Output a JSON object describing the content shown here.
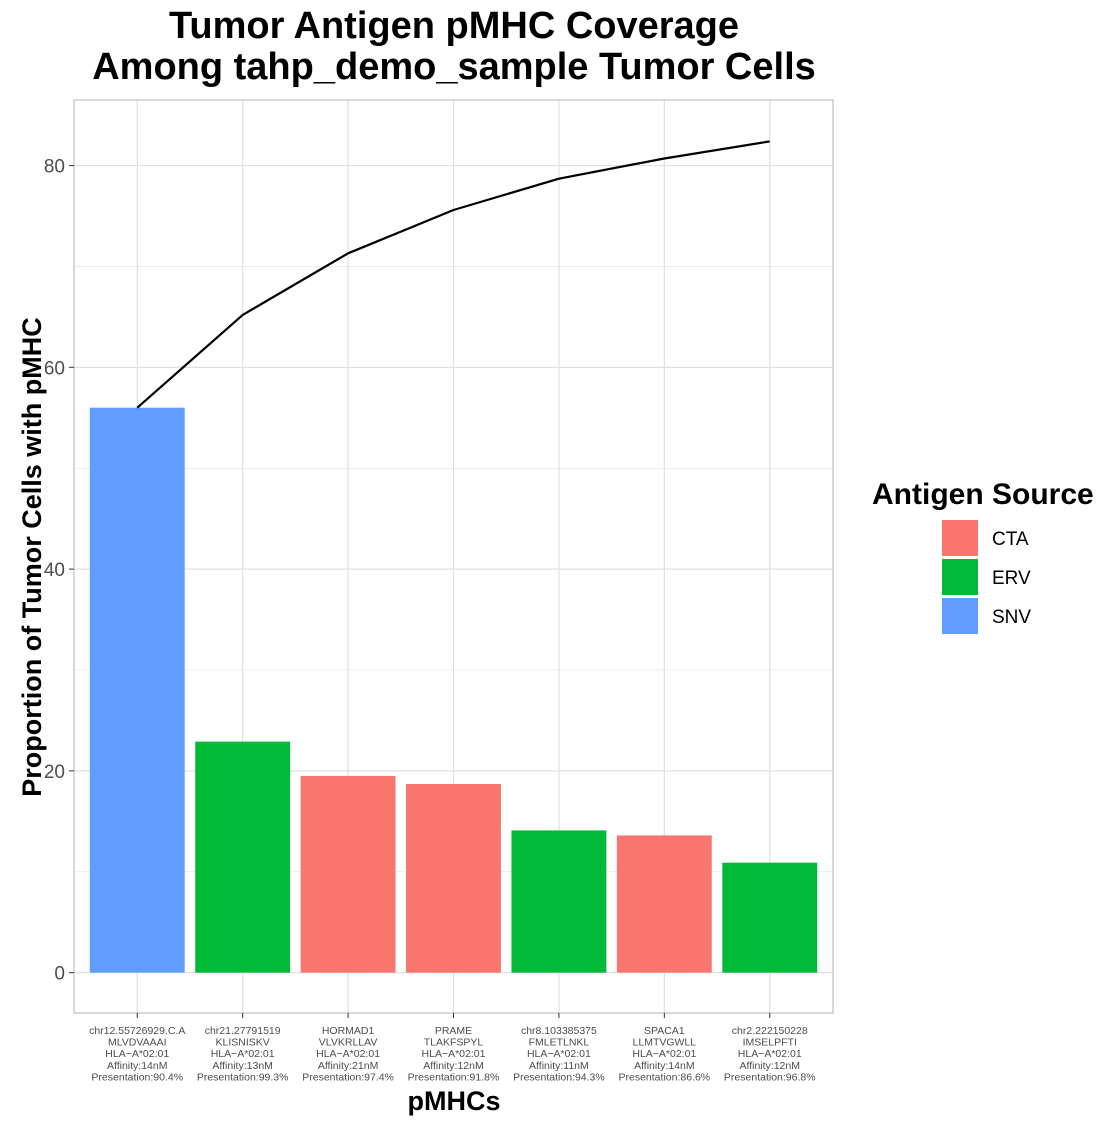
{
  "chart_data": {
    "type": "bar",
    "title": [
      "Tumor Antigen pMHC Coverage",
      "Among tahp_demo_sample Tumor Cells"
    ],
    "xlabel": "pMHCs",
    "ylabel": "Proportion of Tumor Cells with pMHC",
    "ylim": [
      -4,
      86.5
    ],
    "yticks": [
      0,
      20,
      40,
      60,
      80
    ],
    "grid": true,
    "legend": {
      "title": "Antigen Source",
      "position": "right",
      "entries": [
        {
          "label": "CTA",
          "color": "#F8766D"
        },
        {
          "label": "ERV",
          "color": "#00BA38"
        },
        {
          "label": "SNV",
          "color": "#619CFF"
        }
      ]
    },
    "categories": [
      [
        "chr12.55726929.C.A",
        "MLVDVAAAI",
        "HLA−A*02:01",
        "Affinity:14nM",
        "Presentation:90.4%"
      ],
      [
        "chr21.27791519",
        "KLISNISKV",
        "HLA−A*02:01",
        "Affinity:13nM",
        "Presentation:99.3%"
      ],
      [
        "HORMAD1",
        "VLVKRLLAV",
        "HLA−A*02:01",
        "Affinity:21nM",
        "Presentation:97.4%"
      ],
      [
        "PRAME",
        "TLAKFSPYL",
        "HLA−A*02:01",
        "Affinity:12nM",
        "Presentation:91.8%"
      ],
      [
        "chr8.103385375",
        "FMLETLNKL",
        "HLA−A*02:01",
        "Affinity:11nM",
        "Presentation:94.3%"
      ],
      [
        "SPACA1",
        "LLMTVGWLL",
        "HLA−A*02:01",
        "Affinity:14nM",
        "Presentation:86.6%"
      ],
      [
        "chr2.222150228",
        "IMSELPFTI",
        "HLA−A*02:01",
        "Affinity:12nM",
        "Presentation:96.8%"
      ]
    ],
    "values": [
      56.0,
      22.9,
      19.5,
      18.7,
      14.1,
      13.6,
      10.9
    ],
    "sources": [
      "SNV",
      "ERV",
      "CTA",
      "CTA",
      "ERV",
      "CTA",
      "ERV"
    ],
    "cumulative_line": [
      56.0,
      65.2,
      71.3,
      75.6,
      78.7,
      80.7,
      82.4
    ],
    "colors": {
      "SNV": "#619CFF",
      "ERV": "#00BA38",
      "CTA": "#F8766D",
      "line": "#000000",
      "grid": "#e0e0e0",
      "panel_border": "#b3b3b3"
    }
  }
}
